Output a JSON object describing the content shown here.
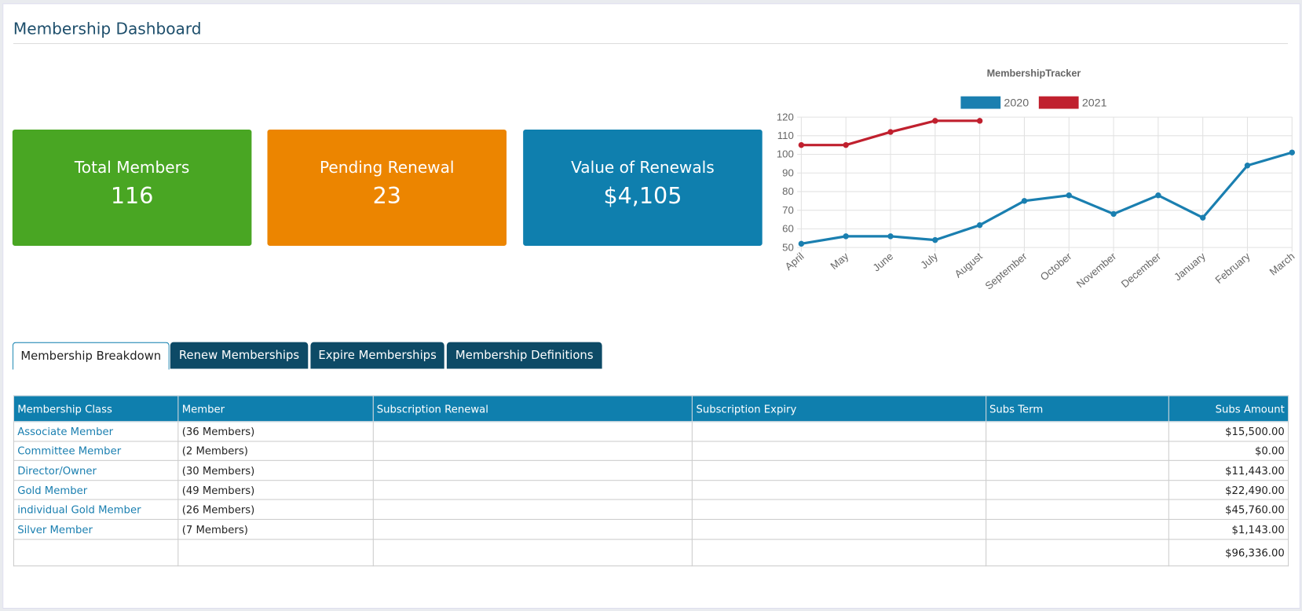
{
  "header": {
    "title": "Membership Dashboard"
  },
  "cards": [
    {
      "label": "Total Members",
      "value": "116"
    },
    {
      "label": "Pending Renewal",
      "value": "23"
    },
    {
      "label": "Value of Renewals",
      "value": "$4,105"
    }
  ],
  "chart_data": {
    "type": "line",
    "title": "MembershipTracker",
    "categories": [
      "April",
      "May",
      "June",
      "July",
      "August",
      "September",
      "October",
      "November",
      "December",
      "January",
      "February",
      "March"
    ],
    "series": [
      {
        "name": "2020",
        "color": "#1a7fb0",
        "values": [
          52,
          56,
          56,
          54,
          62,
          75,
          78,
          68,
          78,
          66,
          94,
          101
        ]
      },
      {
        "name": "2021",
        "color": "#c0202e",
        "values": [
          105,
          105,
          112,
          118,
          118,
          null,
          null,
          null,
          null,
          null,
          null,
          null
        ]
      }
    ],
    "ylim": [
      50,
      120
    ],
    "yticks": [
      50,
      60,
      70,
      80,
      90,
      100,
      110,
      120
    ],
    "grid": true,
    "legend": "top"
  },
  "tabs": [
    "Membership Breakdown",
    "Renew Memberships",
    "Expire Memberships",
    "Membership Definitions"
  ],
  "table": {
    "headers": [
      "Membership Class",
      "Member",
      "Subscription Renewal",
      "Subscription Expiry",
      "Subs Term",
      "Subs Amount"
    ],
    "rows": [
      {
        "class": "Associate Member",
        "members": "(36 Members)",
        "amount": "$15,500.00"
      },
      {
        "class": "Committee Member",
        "members": "(2 Members)",
        "amount": "$0.00"
      },
      {
        "class": "Director/Owner",
        "members": "(30 Members)",
        "amount": "$11,443.00"
      },
      {
        "class": "Gold Member",
        "members": "(49 Members)",
        "amount": "$22,490.00"
      },
      {
        "class": "individual Gold Member",
        "members": "(26 Members)",
        "amount": "$45,760.00"
      },
      {
        "class": "Silver Member",
        "members": "(7 Members)",
        "amount": "$1,143.00"
      }
    ],
    "total": "$96,336.00"
  }
}
